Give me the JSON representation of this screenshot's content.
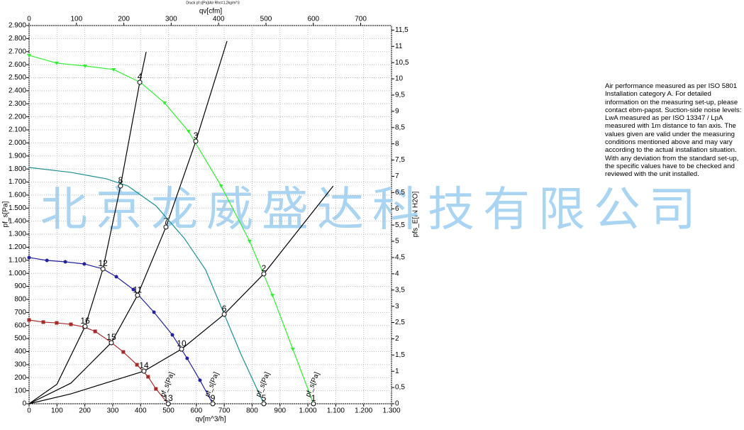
{
  "chart_data": {
    "type": "line",
    "title": "Druck pf s[Pa]/Air Rho=1,2kg/m^3",
    "x_label": "qv[m^3/h]",
    "x2_label": "qv[cfm]",
    "y_label": "pf_s[Pa]",
    "y2_label": "pfs_E[IN H2O]",
    "watermark": "北京龙威盛达科技有限公司",
    "note": "Air performance measured as per ISO 5801 Installation category A. For detailed information on the measuring set-up, please contact ebm-papst. Suction-side noise levels: LwA measured as per ISO 13347 / LpA measured with 1m distance to fan axis. The values given are valid under the measuring conditions mentioned above and may vary according to the actual installation situation. With any deviation from the standard set-up, the specific values have to be checked and reviewed with the unit installed.",
    "grid": true,
    "xlim": [
      0,
      1300
    ],
    "xticks": [
      0,
      100,
      200,
      300,
      400,
      500,
      600,
      700,
      800,
      900,
      {
        "value": 1000,
        "label": "1.000"
      },
      {
        "value": 1100,
        "label": "1.100"
      },
      {
        "value": 1200,
        "label": "1.200"
      },
      {
        "value": 1300,
        "label": "1.300"
      }
    ],
    "x2lim": [
      0,
      765
    ],
    "x2ticks": [
      0,
      100,
      200,
      300,
      400,
      500,
      600,
      700
    ],
    "ylim": [
      0,
      2900
    ],
    "yticks": [
      0,
      100,
      200,
      300,
      400,
      500,
      600,
      700,
      800,
      900,
      {
        "value": 1000,
        "label": "1.000"
      },
      {
        "value": 1100,
        "label": "1.100"
      },
      {
        "value": 1200,
        "label": "1.200"
      },
      {
        "value": 1300,
        "label": "1.300"
      },
      {
        "value": 1400,
        "label": "1.400"
      },
      {
        "value": 1500,
        "label": "1.500"
      },
      {
        "value": 1600,
        "label": "1.600"
      },
      {
        "value": 1700,
        "label": "1.700"
      },
      {
        "value": 1800,
        "label": "1.800"
      },
      {
        "value": 1900,
        "label": "1.900"
      },
      {
        "value": 2000,
        "label": "2.000"
      },
      {
        "value": 2100,
        "label": "2.100"
      },
      {
        "value": 2200,
        "label": "2.200"
      },
      {
        "value": 2300,
        "label": "2.300"
      },
      {
        "value": 2400,
        "label": "2.400"
      },
      {
        "value": 2500,
        "label": "2.500"
      },
      {
        "value": 2600,
        "label": "2.600"
      },
      {
        "value": 2700,
        "label": "2.700"
      },
      {
        "value": 2800,
        "label": "2.800"
      },
      {
        "value": 2900,
        "label": "2.900"
      }
    ],
    "y2lim": [
      0,
      11.64
    ],
    "y2ticks": [
      0,
      {
        "value": 0.5,
        "label": "0,5"
      },
      1,
      {
        "value": 1.5,
        "label": "1,5"
      },
      2,
      {
        "value": 2.5,
        "label": "2,5"
      },
      3,
      {
        "value": 3.5,
        "label": "3,5"
      },
      4,
      {
        "value": 4.5,
        "label": "4,5"
      },
      5,
      {
        "value": 5.5,
        "label": "5,5"
      },
      6,
      {
        "value": 6.5,
        "label": "6,5"
      },
      7,
      {
        "value": 7.5,
        "label": "7,5"
      },
      8,
      {
        "value": 8.5,
        "label": "8,5"
      },
      9,
      {
        "value": 9.5,
        "label": "9,5"
      },
      10,
      {
        "value": 10.5,
        "label": "10,5"
      },
      11,
      {
        "value": 11.5,
        "label": "11,5"
      }
    ],
    "series": [
      {
        "name": "pf_s[Pa]",
        "color": "#33ee33",
        "marker": "triangle",
        "x": [
          0,
          99,
          201,
          303,
          399,
          486,
          572,
          689,
          791,
          873,
          946,
          1020
        ],
        "values": [
          2672,
          2612,
          2590,
          2563,
          2465,
          2307,
          2089,
          1670,
          1246,
          832,
          419,
          0
        ]
      },
      {
        "name": "pf_s[Pa]",
        "color": "#1f8f8f",
        "marker": "none",
        "x": [
          0,
          150,
          277,
          354,
          455,
          557,
          633,
          700,
          761,
          842
        ],
        "values": [
          1812,
          1774,
          1725,
          1670,
          1518,
          1268,
          1028,
          686,
          375,
          0
        ]
      },
      {
        "name": "pf_s[Pa]",
        "color": "#22229a",
        "marker": "circle",
        "x": [
          0,
          64,
          130,
          198,
          265,
          313,
          374,
          448,
          514,
          567,
          613,
          659
        ],
        "values": [
          1121,
          1099,
          1088,
          1072,
          1034,
          974,
          876,
          702,
          528,
          348,
          180,
          0
        ]
      },
      {
        "name": "pf_s[Pa]",
        "color": "#a52a2a",
        "marker": "square",
        "x": [
          0,
          51,
          99,
          150,
          198,
          237,
          293,
          338,
          387,
          427,
          455,
          499
        ],
        "values": [
          642,
          626,
          620,
          609,
          588,
          555,
          473,
          397,
          299,
          207,
          114,
          0
        ]
      }
    ],
    "system_curves": [
      {
        "color": "#000000",
        "x": [
          0,
          100,
          201,
          265,
          328,
          397,
          420
        ],
        "values": [
          0,
          150,
          593,
          1034,
          1670,
          2465,
          2698
        ]
      },
      {
        "color": "#000000",
        "x": [
          0,
          150,
          295,
          389,
          491,
          598,
          710
        ],
        "values": [
          0,
          158,
          468,
          832,
          1355,
          2013,
          2781
        ]
      },
      {
        "color": "#000000",
        "x": [
          0,
          150,
          412,
          547,
          700,
          842,
          1091
        ],
        "values": [
          0,
          76,
          250,
          419,
          686,
          996,
          1670
        ]
      }
    ],
    "operating_points": [
      {
        "label": "1",
        "x": 1020,
        "y": 0
      },
      {
        "label": "2",
        "x": 842,
        "y": 996
      },
      {
        "label": "3",
        "x": 598,
        "y": 2013
      },
      {
        "label": "4",
        "x": 397,
        "y": 2465
      },
      {
        "label": "5",
        "x": 842,
        "y": 0
      },
      {
        "label": "6",
        "x": 700,
        "y": 686
      },
      {
        "label": "7",
        "x": 491,
        "y": 1355
      },
      {
        "label": "8",
        "x": 328,
        "y": 1670
      },
      {
        "label": "9",
        "x": 659,
        "y": 0
      },
      {
        "label": "10",
        "x": 547,
        "y": 419
      },
      {
        "label": "11",
        "x": 389,
        "y": 832
      },
      {
        "label": "12",
        "x": 265,
        "y": 1034
      },
      {
        "label": "13",
        "x": 499,
        "y": 0
      },
      {
        "label": "14",
        "x": 412,
        "y": 250
      },
      {
        "label": "15",
        "x": 295,
        "y": 468
      },
      {
        "label": "16",
        "x": 201,
        "y": 593
      }
    ]
  }
}
